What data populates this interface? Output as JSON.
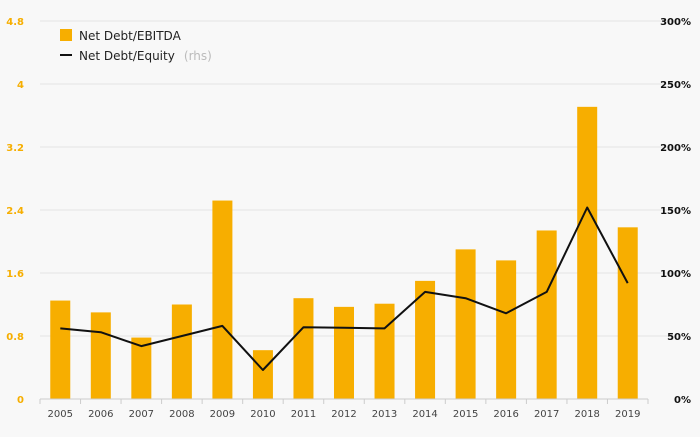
{
  "chart_data": {
    "type": "bar",
    "categories": [
      "2005",
      "2006",
      "2007",
      "2008",
      "2009",
      "2010",
      "2011",
      "2012",
      "2013",
      "2014",
      "2015",
      "2016",
      "2017",
      "2018",
      "2019"
    ],
    "series": [
      {
        "name": "Net Debt/EBITDA",
        "type": "bar",
        "axis": "left",
        "color": "#f7ae00",
        "values": [
          1.25,
          1.1,
          0.78,
          1.2,
          2.52,
          0.62,
          1.28,
          1.17,
          1.21,
          1.5,
          1.9,
          1.76,
          2.14,
          3.71,
          2.18
        ]
      },
      {
        "name": "Net Debt/Equity",
        "type": "line",
        "axis": "right",
        "color": "#111111",
        "values": [
          56,
          53,
          42,
          50,
          58,
          23,
          57,
          56.5,
          56,
          85,
          80,
          68,
          85,
          152,
          92
        ]
      }
    ],
    "legend_suffix": "(rhs)",
    "y_left": {
      "min": 0,
      "max": 4.8,
      "ticks": [
        "0",
        "0.8",
        "1.6",
        "2.4",
        "3.2",
        "4",
        "4.8"
      ],
      "color": "#f6ae00"
    },
    "y_right": {
      "min": 0,
      "max": 300,
      "ticks": [
        "0%",
        "50%",
        "100%",
        "150%",
        "200%",
        "250%",
        "300%"
      ],
      "color": "#111111"
    },
    "grid": true,
    "legend_position": "top-left",
    "title": "",
    "xlabel": "",
    "ylabel": ""
  }
}
